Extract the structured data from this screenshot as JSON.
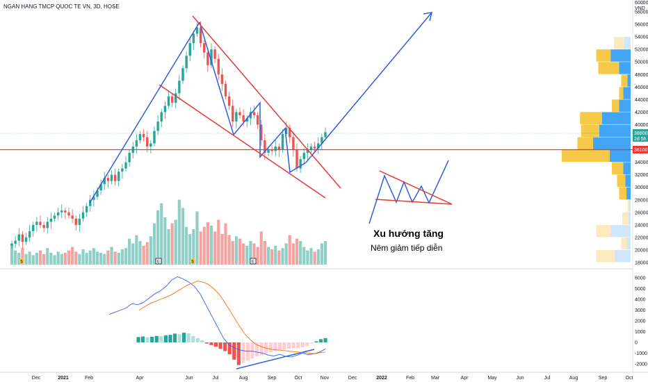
{
  "header": {
    "title": "NGAN HANG TMCP QUOC TE VN, 3D, HOSE"
  },
  "price_axis": {
    "currency": "VND",
    "top_label": "60000"
  },
  "badges": {
    "current": "38800",
    "countdown": "2d 5h",
    "support": "36100"
  },
  "annotations": {
    "trend": "Xu hướng tăng",
    "pattern": "Nêm giảm tiếp diễn"
  },
  "event_markers": [
    "$",
    "E",
    "$",
    "E"
  ],
  "colors": {
    "up": "#26a69a",
    "down": "#ef5350",
    "trend_line": "#2b5fd9",
    "wedge_line": "#e53935",
    "vp_yellow": "#f7c948",
    "vp_blue": "#42a5f5",
    "macd": "#2962ff",
    "signal": "#ff6d00"
  },
  "chart_data": [
    {
      "type": "candlestick",
      "title": "NGAN HANG TMCP QUOC TE VN, 3D, HOSE",
      "ylabel": "VND",
      "ylim": [
        17000,
        60000
      ],
      "price_ticks": [
        58000,
        56000,
        54000,
        52000,
        50000,
        48000,
        46000,
        44000,
        42000,
        40000,
        38000,
        36000,
        34000,
        32000,
        30000,
        28000,
        26000,
        24000,
        22000,
        20000,
        18000
      ],
      "time_ticks": [
        "Dec",
        "2021",
        "Feb",
        "Apr",
        "Jun",
        "Jul",
        "Aug",
        "Sep",
        "Oct",
        "Nov",
        "Dec",
        "2022",
        "Feb",
        "Mar",
        "Apr",
        "May",
        "Jun",
        "Jul",
        "Aug",
        "Sep",
        "Oct"
      ],
      "last_price": 38800,
      "support_price": 36100,
      "close": [
        21000,
        21500,
        22500,
        21300,
        22000,
        23000,
        24000,
        24500,
        24000,
        23500,
        24500,
        25000,
        25500,
        26000,
        26300,
        26000,
        25500,
        25000,
        24000,
        25000,
        26000,
        27000,
        28000,
        28500,
        29500,
        30500,
        31500,
        31000,
        32000,
        31000,
        32500,
        33000,
        34000,
        35500,
        36500,
        37500,
        38500,
        38000,
        36500,
        37000,
        39000,
        40500,
        42000,
        43000,
        44500,
        43500,
        45000,
        47000,
        49000,
        51000,
        53000,
        54500,
        55500,
        53000,
        51500,
        49500,
        52000,
        50500,
        48000,
        46500,
        44500,
        43000,
        40500,
        42000,
        41500,
        40500,
        41000,
        42000,
        41500,
        40000,
        37500,
        35500,
        36000,
        35800,
        36500,
        36000,
        38500,
        39500,
        38000,
        36000,
        33000,
        34500,
        35500,
        36000,
        36500,
        36200,
        37000,
        38000,
        38800
      ],
      "volume": [
        18,
        12,
        10,
        14,
        9,
        11,
        8,
        10,
        12,
        9,
        14,
        10,
        8,
        11,
        9,
        10,
        12,
        15,
        11,
        9,
        13,
        10,
        12,
        14,
        11,
        10,
        9,
        12,
        15,
        11,
        10,
        13,
        14,
        22,
        18,
        25,
        20,
        16,
        19,
        24,
        35,
        46,
        52,
        40,
        30,
        35,
        38,
        55,
        48,
        32,
        26,
        30,
        45,
        28,
        32,
        36,
        33,
        28,
        38,
        26,
        35,
        25,
        20,
        24,
        22,
        18,
        16,
        20,
        18,
        15,
        28,
        20,
        15,
        13,
        16,
        12,
        14,
        18,
        25,
        18,
        22,
        20,
        15,
        12,
        14,
        11,
        13,
        18,
        20
      ],
      "volume_profile": [
        {
          "price": 53000,
          "up": 20,
          "down": 12
        },
        {
          "price": 51000,
          "up": 28,
          "down": 38
        },
        {
          "price": 49000,
          "up": 40,
          "down": 22
        },
        {
          "price": 47000,
          "up": 12,
          "down": 6
        },
        {
          "price": 45000,
          "up": 8,
          "down": 14
        },
        {
          "price": 43000,
          "up": 14,
          "down": 22
        },
        {
          "price": 41000,
          "up": 42,
          "down": 55
        },
        {
          "price": 39000,
          "up": 35,
          "down": 60
        },
        {
          "price": 37000,
          "up": 30,
          "down": 72
        },
        {
          "price": 35000,
          "up": 92,
          "down": 40
        },
        {
          "price": 33000,
          "up": 22,
          "down": 14
        },
        {
          "price": 31000,
          "up": 16,
          "down": 10
        },
        {
          "price": 29000,
          "up": 14,
          "down": 8
        },
        {
          "price": 27000,
          "up": 4,
          "down": 2
        },
        {
          "price": 25000,
          "up": 12,
          "down": 4
        },
        {
          "price": 23000,
          "up": 28,
          "down": 38
        },
        {
          "price": 21000,
          "up": 10,
          "down": 8
        },
        {
          "price": 19000,
          "up": 36,
          "down": 30
        }
      ]
    },
    {
      "type": "macd",
      "ylim": [
        -2300,
        6700
      ],
      "ticks": [
        6000,
        5000,
        4000,
        3000,
        2000,
        1000,
        0,
        -1000,
        -2000
      ],
      "histogram": [
        500,
        550,
        480,
        520,
        600,
        580,
        650,
        700,
        820,
        760,
        900,
        850,
        600,
        400,
        200,
        -100,
        -250,
        -400,
        -600,
        -800,
        -1100,
        -1600,
        -2100,
        -1900,
        -1700,
        -1500,
        -1300,
        -1200,
        -1000,
        -900,
        -800,
        -700,
        -650,
        -600,
        -550,
        -500,
        -450,
        -350,
        -100,
        100,
        300,
        400
      ],
      "macd": [
        2600,
        2800,
        3000,
        3200,
        3600,
        3500,
        3700,
        4100,
        4500,
        4800,
        5200,
        5800,
        6100,
        5900,
        5600,
        5200,
        4500,
        3500,
        2500,
        1500,
        500,
        -200,
        -500,
        -700,
        -800,
        -800,
        -900,
        -1000,
        -1200,
        -1250,
        -1100,
        -1300,
        -1350,
        -1200,
        -1000,
        -1150,
        -1050,
        -900,
        -600
      ],
      "signal": [
        3000,
        3300,
        3600,
        3800,
        4000,
        4200,
        4400,
        4700,
        5000,
        5300,
        5500,
        5700,
        5600,
        5400,
        5000,
        4500,
        3800,
        3000,
        2200,
        1400,
        700,
        200,
        -200,
        -400,
        -550,
        -650,
        -700,
        -750,
        -800,
        -850,
        -900,
        -950,
        -1000,
        -1050,
        -950,
        -900
      ]
    }
  ]
}
